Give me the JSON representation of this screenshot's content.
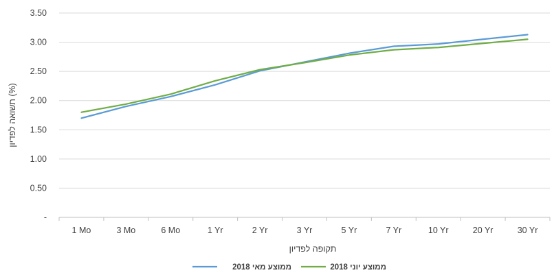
{
  "chart_data": {
    "type": "line",
    "categories": [
      "1 Mo",
      "3 Mo",
      "6 Mo",
      "1 Yr",
      "2 Yr",
      "3 Yr",
      "5 Yr",
      "7 Yr",
      "10 Yr",
      "20 Yr",
      "30 Yr"
    ],
    "series": [
      {
        "name": "ממוצע מאי 2018",
        "color": "#5b9bd5",
        "values": [
          1.7,
          1.9,
          2.07,
          2.27,
          2.51,
          2.66,
          2.81,
          2.93,
          2.97,
          3.05,
          3.13
        ]
      },
      {
        "name": "ממוצע יוני 2018",
        "color": "#70ad47",
        "values": [
          1.8,
          1.94,
          2.11,
          2.34,
          2.53,
          2.65,
          2.78,
          2.87,
          2.91,
          2.98,
          3.05
        ]
      }
    ],
    "y_ticks": [
      "-",
      "0.50",
      "1.00",
      "1.50",
      "2.00",
      "2.50",
      "3.00",
      "3.50"
    ],
    "ylim": [
      0,
      3.5
    ],
    "xlabel": "תקופה לפדיון",
    "ylabel": "תשואה לפדיון (%)",
    "grid": true,
    "legend_position": "bottom"
  }
}
